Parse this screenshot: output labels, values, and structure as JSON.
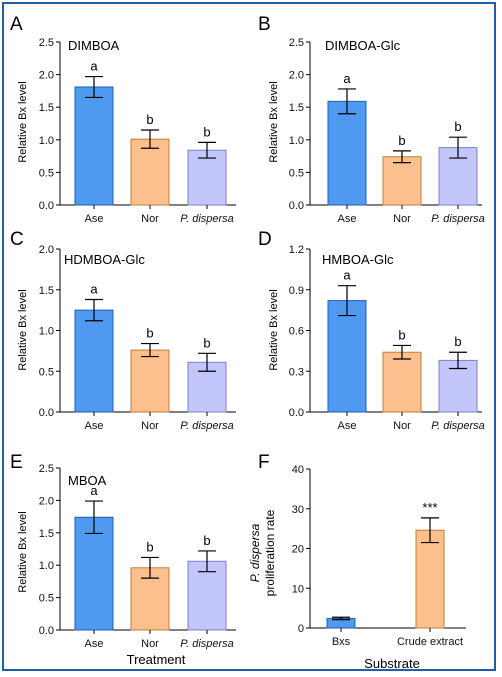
{
  "colors": {
    "frame": "#1f5fa8",
    "axis": "#000000"
  },
  "chart_data": [
    {
      "panel": "A",
      "title": "DIMBOA",
      "type": "bar",
      "ylabel": "Relative Bx level",
      "xlabel": "",
      "ylim": [
        0,
        2.5
      ],
      "yticks": [
        "0.0",
        "0.5",
        "1.0",
        "1.5",
        "2.0",
        "2.5"
      ],
      "categories": [
        "Ase",
        "Nor",
        "P. dispersa"
      ],
      "values": [
        1.81,
        1.01,
        0.84
      ],
      "errors": [
        0.16,
        0.14,
        0.12
      ],
      "labels": [
        "a",
        "b",
        "b"
      ],
      "colors": [
        "#4f9af0",
        "#fbc08e",
        "#c2c6fb"
      ],
      "stroke": [
        "#1d5fb0",
        "#c47d3a",
        "#7c80c8"
      ]
    },
    {
      "panel": "B",
      "title": "DIMBOA-Glc",
      "type": "bar",
      "ylabel": "Relative Bx level",
      "xlabel": "",
      "ylim": [
        0,
        2.5
      ],
      "yticks": [
        "0.0",
        "0.5",
        "1.0",
        "1.5",
        "2.0",
        "2.5"
      ],
      "categories": [
        "Ase",
        "Nor",
        "P. dispersa"
      ],
      "values": [
        1.59,
        0.74,
        0.88
      ],
      "errors": [
        0.19,
        0.09,
        0.16
      ],
      "labels": [
        "a",
        "b",
        "b"
      ],
      "colors": [
        "#4f9af0",
        "#fbc08e",
        "#c2c6fb"
      ],
      "stroke": [
        "#1d5fb0",
        "#c47d3a",
        "#7c80c8"
      ]
    },
    {
      "panel": "C",
      "title": "HDMBOA-Glc",
      "type": "bar",
      "ylabel": "Relative Bx level",
      "xlabel": "",
      "ylim": [
        0,
        2.0
      ],
      "yticks": [
        "0.0",
        "0.5",
        "1.0",
        "1.5",
        "2.0"
      ],
      "categories": [
        "Ase",
        "Nor",
        "P. dispersa"
      ],
      "values": [
        1.25,
        0.76,
        0.61
      ],
      "errors": [
        0.13,
        0.08,
        0.11
      ],
      "labels": [
        "a",
        "b",
        "b"
      ],
      "colors": [
        "#4f9af0",
        "#fbc08e",
        "#c2c6fb"
      ],
      "stroke": [
        "#1d5fb0",
        "#c47d3a",
        "#7c80c8"
      ]
    },
    {
      "panel": "D",
      "title": "HMBOA-Glc",
      "type": "bar",
      "ylabel": "Relative Bx level",
      "xlabel": "",
      "ylim": [
        0,
        1.2
      ],
      "yticks": [
        "0.0",
        "0.3",
        "0.6",
        "0.9",
        "1.2"
      ],
      "categories": [
        "Ase",
        "Nor",
        "P. dispersa"
      ],
      "values": [
        0.82,
        0.44,
        0.38
      ],
      "errors": [
        0.11,
        0.05,
        0.06
      ],
      "labels": [
        "a",
        "b",
        "b"
      ],
      "colors": [
        "#4f9af0",
        "#fbc08e",
        "#c2c6fb"
      ],
      "stroke": [
        "#1d5fb0",
        "#c47d3a",
        "#7c80c8"
      ]
    },
    {
      "panel": "E",
      "title": "MBOA",
      "type": "bar",
      "ylabel": "Relative Bx level",
      "xlabel": "Treatment",
      "ylim": [
        0,
        2.5
      ],
      "yticks": [
        "0.0",
        "0.5",
        "1.0",
        "1.5",
        "2.0",
        "2.5"
      ],
      "categories": [
        "Ase",
        "Nor",
        "P. dispersa"
      ],
      "values": [
        1.74,
        0.96,
        1.06
      ],
      "errors": [
        0.25,
        0.16,
        0.16
      ],
      "labels": [
        "a",
        "b",
        "b"
      ],
      "colors": [
        "#4f9af0",
        "#fbc08e",
        "#c2c6fb"
      ],
      "stroke": [
        "#1d5fb0",
        "#c47d3a",
        "#7c80c8"
      ]
    },
    {
      "panel": "F",
      "title": "",
      "type": "bar",
      "ylabel_italic": "P. dispersa",
      "ylabel": "proliferation rate",
      "xlabel": "Substrate",
      "ylim": [
        0,
        40
      ],
      "yticks": [
        "0",
        "10",
        "20",
        "30",
        "40"
      ],
      "categories": [
        "Bxs",
        "Crude extract"
      ],
      "values": [
        2.4,
        24.6
      ],
      "errors": [
        0.3,
        3.1
      ],
      "labels": [
        "",
        "***"
      ],
      "colors": [
        "#4f9af0",
        "#fbc08e"
      ],
      "stroke": [
        "#1d5fb0",
        "#c47d3a"
      ]
    }
  ]
}
